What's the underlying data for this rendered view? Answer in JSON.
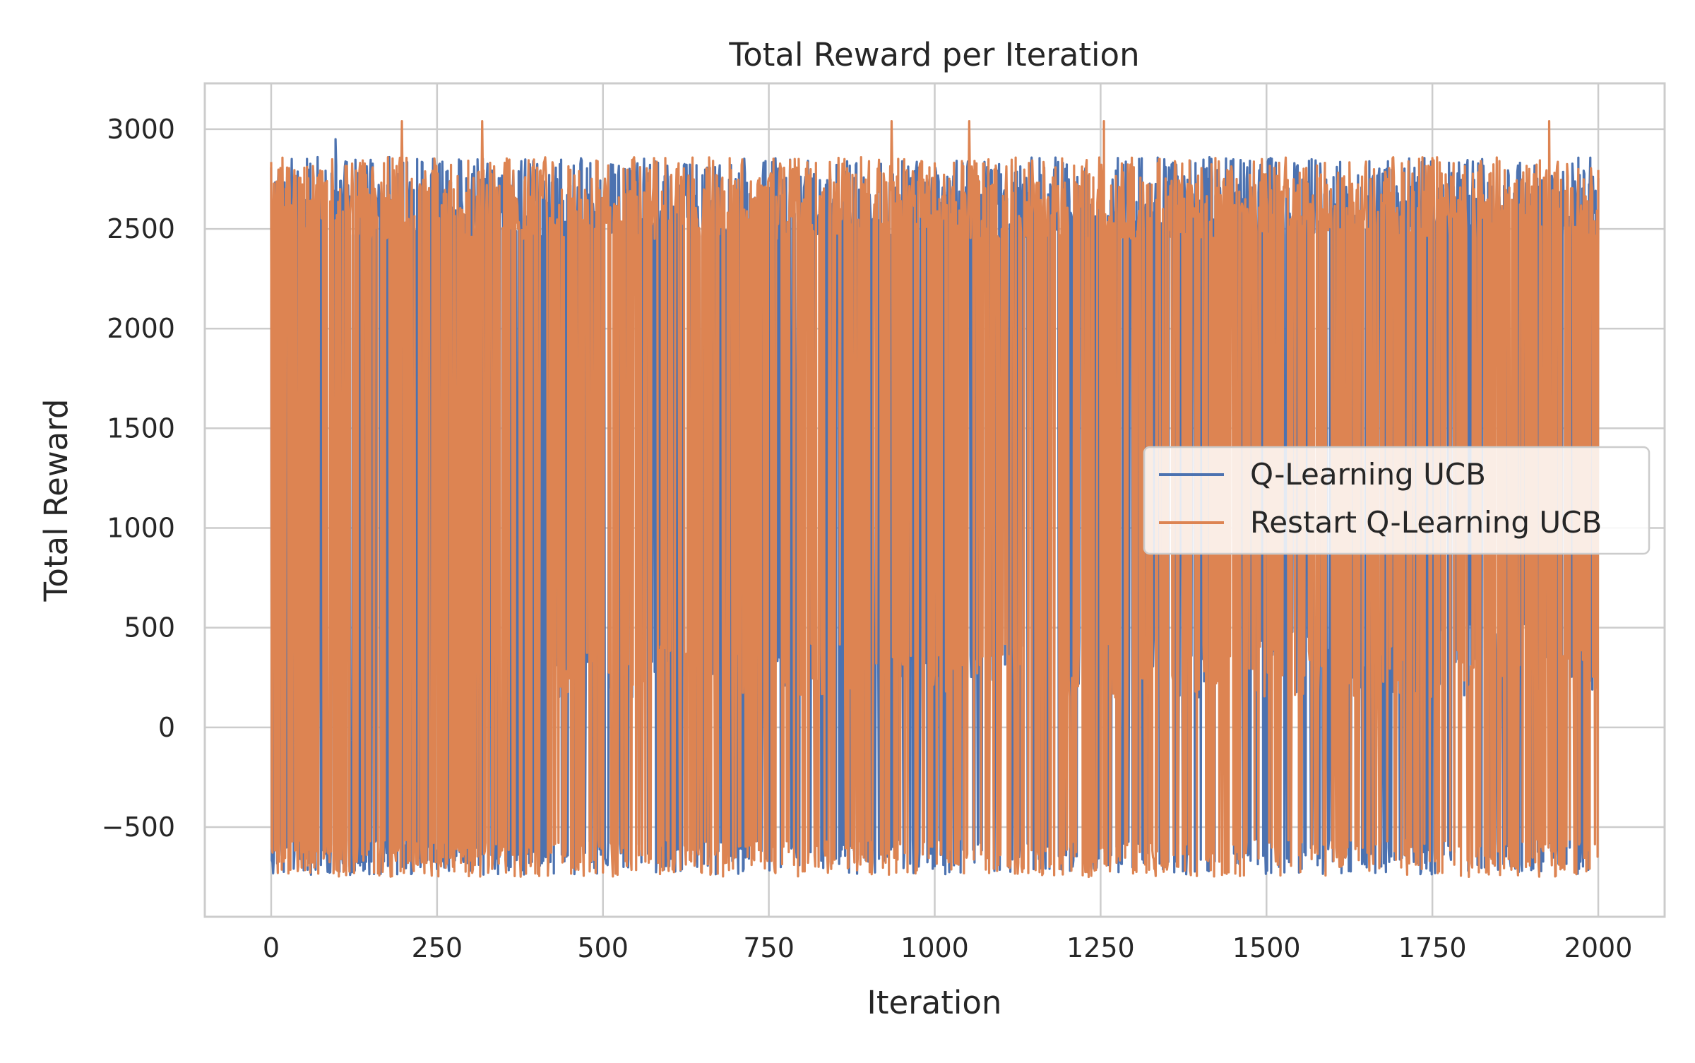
{
  "chart_data": {
    "type": "line",
    "title": "Total Reward per Iteration",
    "xlabel": "Iteration",
    "ylabel": "Total Reward",
    "xlim": [
      -100,
      2100
    ],
    "ylim": [
      -950,
      3230
    ],
    "xticks": [
      0,
      250,
      500,
      750,
      1000,
      1250,
      1500,
      1750,
      2000
    ],
    "yticks": [
      -500,
      0,
      500,
      1000,
      1500,
      2000,
      2500,
      3000
    ],
    "xtick_labels": [
      "0",
      "250",
      "500",
      "750",
      "1000",
      "1250",
      "1500",
      "1750",
      "2000"
    ],
    "ytick_labels": [
      "−500",
      "0",
      "500",
      "1000",
      "1500",
      "2000",
      "2500",
      "3000"
    ],
    "grid": true,
    "legend_position": "center-right",
    "x": {
      "start": 0,
      "end": 2000,
      "step": 1
    },
    "series": [
      {
        "name": "Q-Learning UCB",
        "color": "#4c72b0",
        "y_range": [
          -750,
          2950
        ],
        "typical_high": [
          2450,
          2860
        ],
        "typical_low": [
          -740,
          -560
        ],
        "mid_cluster": [
          150,
          520
        ],
        "mid_cluster_from_x": 430,
        "peaks": [
          [
            97,
            2950
          ],
          [
            70,
            2860
          ],
          [
            178,
            2860
          ],
          [
            130,
            2780
          ],
          [
            220,
            2850
          ]
        ]
      },
      {
        "name": "Restart Q-Learning UCB",
        "color": "#dd8452",
        "y_range": [
          -750,
          3040
        ],
        "typical_high": [
          2450,
          2860
        ],
        "typical_low": [
          -750,
          -560
        ],
        "mid_cluster": [
          150,
          420
        ],
        "mid_cluster_from_x": 430,
        "peaks": [
          [
            197,
            3040
          ],
          [
            318,
            3040
          ],
          [
            1255,
            3040
          ],
          [
            1926,
            3040
          ],
          [
            935,
            3040
          ],
          [
            1052,
            3040
          ]
        ]
      }
    ]
  }
}
